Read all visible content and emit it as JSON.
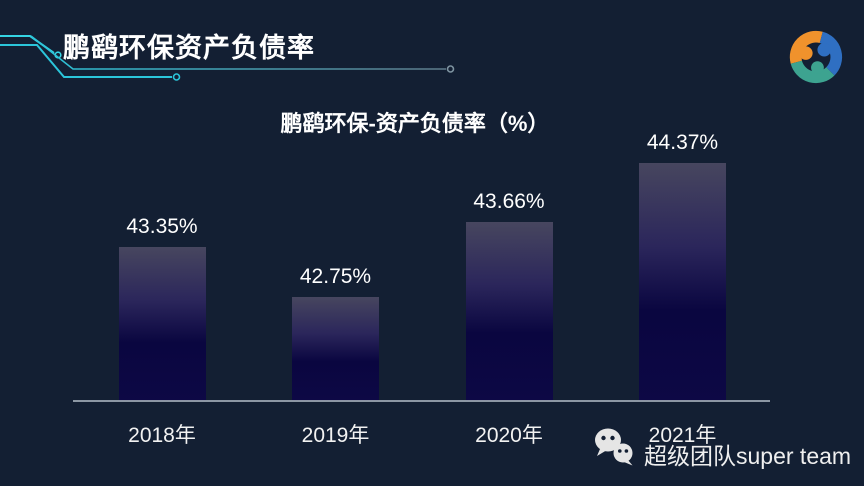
{
  "slide": {
    "title": "鹏鹞环保资产负债率",
    "background_color": "#131f33",
    "accent_teal": "#2bc5da",
    "accent_teal_faded": "#6b8494",
    "logo_icon": "triple-swirl-logo",
    "logo_colors": {
      "orange": "#f0922c",
      "blue": "#2f6fc2",
      "teal": "#3da390"
    }
  },
  "chart_data": {
    "type": "bar",
    "title": "鹏鹞环保-资产负债率（%）",
    "categories": [
      "2018年",
      "2019年",
      "2020年",
      "2021年"
    ],
    "values": [
      43.35,
      42.75,
      43.66,
      44.37
    ],
    "value_labels": [
      "43.35%",
      "42.75%",
      "43.66%",
      "44.37%"
    ],
    "unit": "%",
    "ylim": [
      41.5,
      45
    ],
    "grid": false,
    "legend": false,
    "xlabel": "",
    "ylabel": "",
    "bar_gradient": [
      "#47465f",
      "#2b265b",
      "#0a0640",
      "#0d0845"
    ],
    "axis_line_color": "#9aa4b0",
    "label_color": "#ffffff"
  },
  "watermark": {
    "icon": "wechat-icon",
    "text": "超级团队super team"
  }
}
